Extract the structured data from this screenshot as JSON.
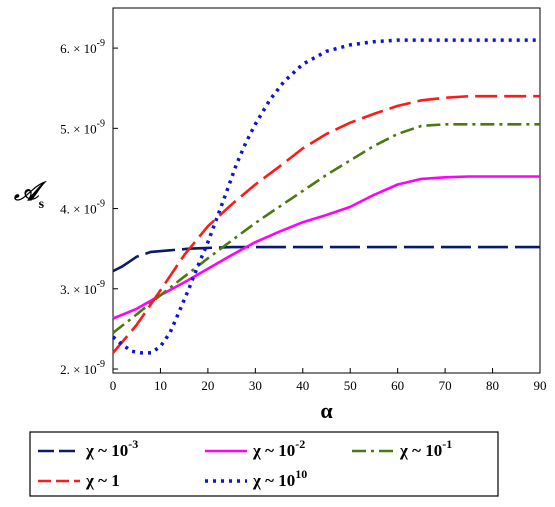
{
  "chart_data": {
    "type": "line",
    "xlabel": "α",
    "ylabel": "𝒜",
    "ylabel_sub": "s",
    "xlim": [
      0,
      90
    ],
    "ylim": [
      1.95e-09,
      6.5e-09
    ],
    "x_ticks": [
      0,
      10,
      20,
      30,
      40,
      50,
      60,
      70,
      80,
      90
    ],
    "x_tick_labels": [
      "0",
      "10",
      "20",
      "30",
      "40",
      "50",
      "60",
      "70",
      "80",
      "90"
    ],
    "y_ticks": [
      2e-09,
      3e-09,
      4e-09,
      5e-09,
      6e-09
    ],
    "y_tick_labels": [
      {
        "mantissa": "2.",
        "base": "× 10",
        "exp": "-9"
      },
      {
        "mantissa": "3.",
        "base": "× 10",
        "exp": "-9"
      },
      {
        "mantissa": "4.",
        "base": "× 10",
        "exp": "-9"
      },
      {
        "mantissa": "5.",
        "base": "× 10",
        "exp": "-9"
      },
      {
        "mantissa": "6.",
        "base": "× 10",
        "exp": "-9"
      }
    ],
    "grid": false,
    "legend_position": "bottom",
    "series": [
      {
        "name": "χ ~ 10",
        "name_exp": "-3",
        "color": "#0a1a6b",
        "dash": "long-dash",
        "x": [
          0,
          2,
          5,
          8,
          12,
          16,
          20,
          25,
          30,
          40,
          50,
          60,
          70,
          80,
          90
        ],
        "y": [
          3.22e-09,
          3.28e-09,
          3.4e-09,
          3.46e-09,
          3.48e-09,
          3.5e-09,
          3.51e-09,
          3.52e-09,
          3.52e-09,
          3.52e-09,
          3.52e-09,
          3.52e-09,
          3.52e-09,
          3.52e-09,
          3.52e-09
        ]
      },
      {
        "name": "χ ~ 10",
        "name_exp": "-2",
        "color": "#ff00ff",
        "dash": "solid",
        "x": [
          0,
          5,
          10,
          15,
          20,
          25,
          30,
          35,
          40,
          45,
          50,
          55,
          60,
          65,
          70,
          75,
          80,
          85,
          90
        ],
        "y": [
          2.63e-09,
          2.75e-09,
          2.92e-09,
          3.08e-09,
          3.25e-09,
          3.42e-09,
          3.58e-09,
          3.71e-09,
          3.83e-09,
          3.92e-09,
          4.02e-09,
          4.17e-09,
          4.3e-09,
          4.37e-09,
          4.39e-09,
          4.4e-09,
          4.4e-09,
          4.4e-09,
          4.4e-09
        ]
      },
      {
        "name": "χ ~ 10",
        "name_exp": "-1",
        "color": "#4a7a0e",
        "dash": "dash-dot",
        "x": [
          0,
          5,
          10,
          15,
          20,
          25,
          30,
          35,
          40,
          45,
          50,
          55,
          60,
          65,
          70,
          75,
          80,
          85,
          90
        ],
        "y": [
          2.45e-09,
          2.68e-09,
          2.92e-09,
          3.15e-09,
          3.38e-09,
          3.6e-09,
          3.82e-09,
          4.02e-09,
          4.22e-09,
          4.42e-09,
          4.6e-09,
          4.78e-09,
          4.93e-09,
          5.03e-09,
          5.05e-09,
          5.05e-09,
          5.05e-09,
          5.05e-09,
          5.05e-09
        ]
      },
      {
        "name": "χ ~ 1",
        "name_exp": "",
        "color": "#ff1a1a",
        "dash": "dash",
        "x": [
          0,
          5,
          10,
          15,
          20,
          25,
          30,
          35,
          40,
          45,
          50,
          55,
          60,
          65,
          70,
          75,
          80,
          85,
          90
        ],
        "y": [
          2.2e-09,
          2.55e-09,
          2.98e-09,
          3.42e-09,
          3.78e-09,
          4.05e-09,
          4.3e-09,
          4.52e-09,
          4.75e-09,
          4.93e-09,
          5.07e-09,
          5.18e-09,
          5.28e-09,
          5.35e-09,
          5.38e-09,
          5.4e-09,
          5.4e-09,
          5.4e-09,
          5.4e-09
        ]
      },
      {
        "name": "χ ~ 10",
        "name_exp": "10",
        "color": "#0b14d8",
        "dash": "dot",
        "x": [
          0,
          2,
          4,
          6,
          8,
          10,
          12,
          14,
          16,
          18,
          20,
          22,
          24,
          26,
          28,
          30,
          33,
          36,
          40,
          45,
          50,
          55,
          60,
          65,
          70,
          75,
          80,
          85,
          90
        ],
        "y": [
          2.4e-09,
          2.3e-09,
          2.22e-09,
          2.2e-09,
          2.2e-09,
          2.28e-09,
          2.45e-09,
          2.72e-09,
          3e-09,
          3.3e-09,
          3.58e-09,
          3.9e-09,
          4.22e-09,
          4.55e-09,
          4.82e-09,
          5.05e-09,
          5.35e-09,
          5.58e-09,
          5.8e-09,
          5.96e-09,
          6.04e-09,
          6.08e-09,
          6.1e-09,
          6.1e-09,
          6.1e-09,
          6.1e-09,
          6.1e-09,
          6.1e-09,
          6.1e-09
        ]
      }
    ]
  }
}
